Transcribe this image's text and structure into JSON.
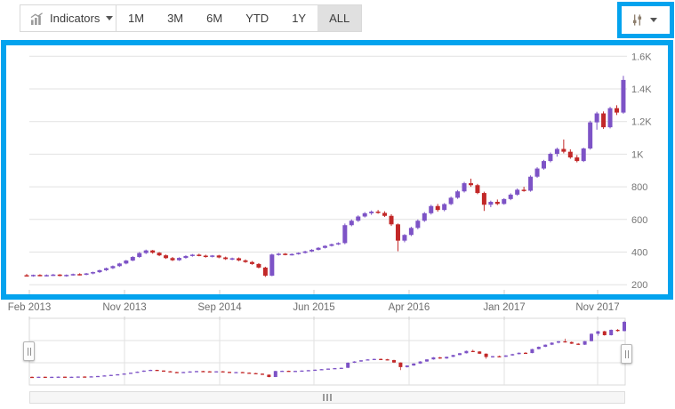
{
  "toolbar": {
    "indicators_label": "Indicators",
    "indicators_icon": "bar-chart-icon",
    "periods": [
      "1M",
      "3M",
      "6M",
      "YTD",
      "1Y",
      "ALL"
    ],
    "selected_period": "ALL",
    "settings_icon": "sliders-icon"
  },
  "colors": {
    "bullish": "#7d53c6",
    "bearish": "#c22828",
    "highlight": "#03a3ee",
    "gridline": "#e2e2e2",
    "axis_text": "#757575",
    "selected_button_bg": "#e0e0e0"
  },
  "chart_data": {
    "type": "candlestick",
    "title": "",
    "xlabel": "",
    "ylabel": "",
    "y_axis_side": "right",
    "grid": "horizontal",
    "x_ticks": [
      "Feb 2013",
      "Nov 2013",
      "Sep 2014",
      "Jun 2015",
      "Apr 2016",
      "Jan 2017",
      "Nov 2017"
    ],
    "y_ticks": [
      "1.6K",
      "1.4K",
      "1.2K",
      "1K",
      "800",
      "600",
      "400",
      "200"
    ],
    "y_tick_values": [
      1600,
      1400,
      1200,
      1000,
      800,
      600,
      400,
      200
    ],
    "ylim": [
      150,
      1650
    ],
    "candles_format": [
      "open",
      "high",
      "low",
      "close"
    ],
    "candles": [
      [
        258,
        266,
        250,
        255
      ],
      [
        255,
        262,
        249,
        260
      ],
      [
        260,
        264,
        252,
        256
      ],
      [
        256,
        263,
        250,
        259
      ],
      [
        259,
        266,
        253,
        262
      ],
      [
        262,
        265,
        251,
        255
      ],
      [
        255,
        263,
        249,
        260
      ],
      [
        260,
        268,
        255,
        265
      ],
      [
        265,
        270,
        257,
        261
      ],
      [
        261,
        272,
        258,
        269
      ],
      [
        269,
        280,
        264,
        277
      ],
      [
        277,
        292,
        272,
        289
      ],
      [
        289,
        305,
        284,
        301
      ],
      [
        301,
        318,
        296,
        314
      ],
      [
        314,
        334,
        309,
        330
      ],
      [
        330,
        352,
        325,
        348
      ],
      [
        348,
        375,
        344,
        370
      ],
      [
        370,
        400,
        365,
        394
      ],
      [
        394,
        415,
        388,
        410
      ],
      [
        410,
        413,
        390,
        396
      ],
      [
        396,
        400,
        375,
        380
      ],
      [
        380,
        385,
        358,
        363
      ],
      [
        363,
        370,
        345,
        350
      ],
      [
        350,
        368,
        346,
        364
      ],
      [
        364,
        380,
        360,
        376
      ],
      [
        376,
        388,
        372,
        384
      ],
      [
        384,
        390,
        374,
        378
      ],
      [
        378,
        384,
        366,
        371
      ],
      [
        371,
        382,
        367,
        379
      ],
      [
        379,
        383,
        362,
        367
      ],
      [
        367,
        372,
        352,
        357
      ],
      [
        357,
        366,
        350,
        362
      ],
      [
        362,
        367,
        344,
        349
      ],
      [
        349,
        355,
        334,
        339
      ],
      [
        339,
        345,
        322,
        327
      ],
      [
        327,
        332,
        300,
        305
      ],
      [
        305,
        310,
        248,
        255
      ],
      [
        255,
        390,
        252,
        385
      ],
      [
        385,
        395,
        378,
        390
      ],
      [
        390,
        394,
        380,
        384
      ],
      [
        384,
        392,
        379,
        388
      ],
      [
        388,
        398,
        384,
        395
      ],
      [
        395,
        408,
        391,
        404
      ],
      [
        404,
        418,
        400,
        414
      ],
      [
        414,
        430,
        410,
        426
      ],
      [
        426,
        442,
        422,
        438
      ],
      [
        438,
        452,
        434,
        448
      ],
      [
        448,
        460,
        443,
        455
      ],
      [
        455,
        575,
        448,
        565
      ],
      [
        565,
        600,
        558,
        592
      ],
      [
        592,
        625,
        585,
        618
      ],
      [
        618,
        645,
        612,
        638
      ],
      [
        638,
        655,
        628,
        648
      ],
      [
        648,
        658,
        635,
        640
      ],
      [
        640,
        650,
        615,
        622
      ],
      [
        622,
        632,
        560,
        570
      ],
      [
        570,
        575,
        405,
        470
      ],
      [
        470,
        510,
        460,
        505
      ],
      [
        505,
        555,
        498,
        548
      ],
      [
        548,
        600,
        540,
        592
      ],
      [
        592,
        645,
        585,
        638
      ],
      [
        638,
        690,
        630,
        682
      ],
      [
        682,
        695,
        648,
        658
      ],
      [
        658,
        700,
        650,
        694
      ],
      [
        694,
        740,
        688,
        733
      ],
      [
        733,
        780,
        726,
        772
      ],
      [
        772,
        830,
        765,
        822
      ],
      [
        822,
        850,
        800,
        810
      ],
      [
        810,
        818,
        755,
        762
      ],
      [
        762,
        770,
        652,
        690
      ],
      [
        690,
        715,
        675,
        708
      ],
      [
        708,
        722,
        688,
        695
      ],
      [
        695,
        730,
        690,
        725
      ],
      [
        725,
        760,
        718,
        752
      ],
      [
        752,
        790,
        745,
        782
      ],
      [
        782,
        800,
        770,
        776
      ],
      [
        776,
        870,
        770,
        862
      ],
      [
        862,
        920,
        855,
        912
      ],
      [
        912,
        965,
        905,
        958
      ],
      [
        958,
        1010,
        950,
        1002
      ],
      [
        1002,
        1040,
        985,
        1032
      ],
      [
        1032,
        1090,
        1005,
        1015
      ],
      [
        1015,
        1030,
        972,
        980
      ],
      [
        980,
        995,
        950,
        958
      ],
      [
        958,
        1040,
        952,
        1035
      ],
      [
        1035,
        1205,
        1028,
        1195
      ],
      [
        1195,
        1260,
        1150,
        1250
      ],
      [
        1250,
        1262,
        1155,
        1165
      ],
      [
        1165,
        1290,
        1158,
        1282
      ],
      [
        1282,
        1300,
        1240,
        1255
      ],
      [
        1255,
        1480,
        1248,
        1455
      ]
    ]
  },
  "navigator": {
    "type": "range-selector",
    "shows_same_series": true,
    "left_handle_icon": "drag-handle-icon",
    "right_handle_icon": "drag-handle-icon",
    "scrollbar_grip_icon": "grip-icon"
  },
  "annotations": {
    "highlighted_regions": [
      "chart-settings-button",
      "main-chart-plot-area"
    ]
  }
}
